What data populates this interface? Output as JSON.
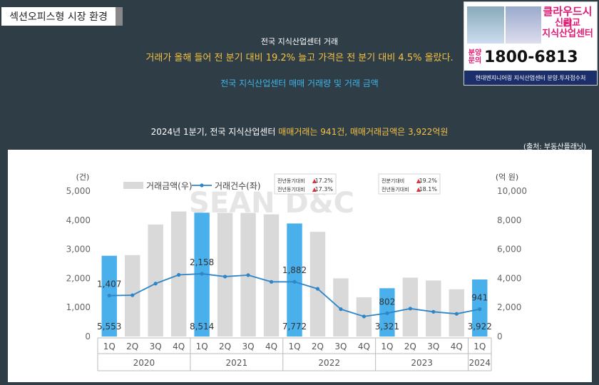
{
  "header": {
    "title": "섹션오피스형 시장 환경"
  },
  "ad": {
    "brand": "클라우드시티",
    "line1": "신광교",
    "line2": "지식산업센터",
    "label_a": "분양",
    "label_b": "문의",
    "phone": "1800-6813",
    "footer": "현대엔지니어링 지식산업센터 분양.투자접수처"
  },
  "summary": {
    "title": "전국 지식산업센터 거래",
    "desc": "거래가 올해 들어 전 분기 대비 19.2% 늘고 가격은 전 분기 대비 4.5% 올랐다.",
    "chart_title": "전국 지식산업센터 매매 거래량 및 거래 금액",
    "headline_a": "2024년 1분기, 전국 지식산업센터 ",
    "headline_b": "매매거래는 941건, 매매거래금액은 3,922억원",
    "source": "(출처: 부동산플래닛)"
  },
  "chart_data": {
    "type": "bar",
    "categories": [
      "1Q",
      "2Q",
      "3Q",
      "4Q",
      "1Q",
      "2Q",
      "3Q",
      "4Q",
      "1Q",
      "2Q",
      "3Q",
      "4Q",
      "1Q",
      "2Q",
      "3Q",
      "4Q",
      "1Q"
    ],
    "years": [
      "2020",
      "2021",
      "2022",
      "2023",
      "2024"
    ],
    "ylabel_left": "(건)",
    "ylabel_right": "(억 원)",
    "y_left_ticks": [
      "0",
      "1,000",
      "2,000",
      "3,000",
      "4,000",
      "5,000"
    ],
    "y_right_ticks": [
      "0",
      "2,000",
      "4,000",
      "6,000",
      "8,000",
      "10,000"
    ],
    "ylim_left": [
      0,
      5000
    ],
    "ylim_right": [
      0,
      10000
    ],
    "series": [
      {
        "name": "거래금액(우)",
        "axis": "right",
        "values": [
          5553,
          5600,
          7700,
          8600,
          8514,
          8500,
          8500,
          8400,
          7772,
          7200,
          4000,
          2700,
          3321,
          4050,
          3850,
          3250,
          3922
        ]
      },
      {
        "name": "거래건수(좌)",
        "axis": "left",
        "values": [
          1407,
          1420,
          1820,
          2120,
          2158,
          2060,
          2110,
          1880,
          1882,
          1640,
          940,
          690,
          802,
          960,
          850,
          780,
          941
        ]
      }
    ],
    "highlight_indices": [
      0,
      4,
      8,
      12,
      16
    ],
    "bar_labels": [
      {
        "index": 0,
        "text": "5,553"
      },
      {
        "index": 4,
        "text": "8,514"
      },
      {
        "index": 8,
        "text": "7,772"
      },
      {
        "index": 12,
        "text": "3,321"
      },
      {
        "index": 16,
        "text": "3,922"
      }
    ],
    "line_labels": [
      {
        "index": 0,
        "text": "1,407"
      },
      {
        "index": 4,
        "text": "2,158"
      },
      {
        "index": 8,
        "text": "1,882"
      },
      {
        "index": 12,
        "text": "802"
      },
      {
        "index": 16,
        "text": "941"
      }
    ],
    "notes": [
      {
        "rows": [
          {
            "label": "전년동기대비",
            "value": "17.2%"
          },
          {
            "label": "전년동기대비",
            "value": "17.3%"
          }
        ]
      },
      {
        "rows": [
          {
            "label": "전분기대비",
            "value": "19.2%"
          },
          {
            "label": "전년동기대비",
            "value": "18.1%"
          }
        ]
      }
    ],
    "watermark": "SEAN D&C",
    "colors": {
      "bar": "#d9d9d9",
      "highlight": "#4ab0ec",
      "line": "#2e86c8"
    }
  }
}
